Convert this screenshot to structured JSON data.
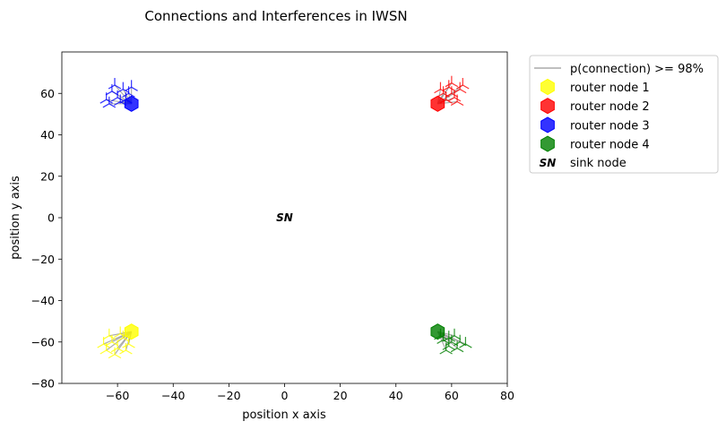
{
  "chart_data": {
    "type": "scatter",
    "title": "Connections and Interferences in IWSN",
    "xlabel": "position x axis",
    "ylabel": "position y axis",
    "xlim": [
      -80,
      80
    ],
    "ylim": [
      -80,
      80
    ],
    "xticks": [
      -60,
      -40,
      -20,
      0,
      20,
      40,
      60,
      80
    ],
    "yticks": [
      -80,
      -60,
      -40,
      -20,
      0,
      20,
      40,
      60
    ],
    "xtick_labels": [
      "−60",
      "−40",
      "−20",
      "0",
      "20",
      "40",
      "60",
      "80"
    ],
    "ytick_labels": [
      "−80",
      "−60",
      "−40",
      "−20",
      "0",
      "20",
      "40",
      "60"
    ],
    "grid": false,
    "legend_position": "outside-top-right",
    "connection_threshold_label": "p(connection) >= 98%",
    "connection_color": "#999999",
    "sink": {
      "name": "sink node",
      "label": "SN",
      "x": 0,
      "y": 0
    },
    "series": [
      {
        "name": "router node 1",
        "color": "#ffff00",
        "router": {
          "x": -55,
          "y": -55
        },
        "sensors": [
          {
            "x": -64,
            "y": -64
          },
          {
            "x": -62,
            "y": -60
          },
          {
            "x": -60,
            "y": -63
          },
          {
            "x": -58,
            "y": -58
          },
          {
            "x": -63,
            "y": -57
          },
          {
            "x": -56,
            "y": -61
          },
          {
            "x": -61,
            "y": -66
          },
          {
            "x": -57,
            "y": -64
          },
          {
            "x": -59,
            "y": -56
          },
          {
            "x": -65,
            "y": -61
          }
        ]
      },
      {
        "name": "router node 2",
        "color": "#ff0000",
        "router": {
          "x": 55,
          "y": 55
        },
        "sensors": [
          {
            "x": 57,
            "y": 60
          },
          {
            "x": 59,
            "y": 63
          },
          {
            "x": 61,
            "y": 58
          },
          {
            "x": 63,
            "y": 62
          },
          {
            "x": 60,
            "y": 65
          },
          {
            "x": 58,
            "y": 57
          },
          {
            "x": 62,
            "y": 56
          },
          {
            "x": 64,
            "y": 64
          },
          {
            "x": 56,
            "y": 62
          },
          {
            "x": 60,
            "y": 60
          }
        ]
      },
      {
        "name": "router node 3",
        "color": "#0000ff",
        "router": {
          "x": -55,
          "y": 55
        },
        "sensors": [
          {
            "x": -64,
            "y": 57
          },
          {
            "x": -62,
            "y": 61
          },
          {
            "x": -60,
            "y": 58
          },
          {
            "x": -58,
            "y": 62
          },
          {
            "x": -56,
            "y": 60
          },
          {
            "x": -63,
            "y": 55
          },
          {
            "x": -59,
            "y": 56
          },
          {
            "x": -61,
            "y": 64
          },
          {
            "x": -57,
            "y": 57
          },
          {
            "x": -55,
            "y": 63
          }
        ]
      },
      {
        "name": "router node 4",
        "color": "#008000",
        "router": {
          "x": 55,
          "y": -55
        },
        "sensors": [
          {
            "x": 57,
            "y": -59
          },
          {
            "x": 59,
            "y": -62
          },
          {
            "x": 61,
            "y": -57
          },
          {
            "x": 63,
            "y": -60
          },
          {
            "x": 58,
            "y": -64
          },
          {
            "x": 60,
            "y": -60
          },
          {
            "x": 62,
            "y": -63
          },
          {
            "x": 65,
            "y": -61
          },
          {
            "x": 56,
            "y": -57
          },
          {
            "x": 59,
            "y": -58
          }
        ]
      }
    ]
  }
}
